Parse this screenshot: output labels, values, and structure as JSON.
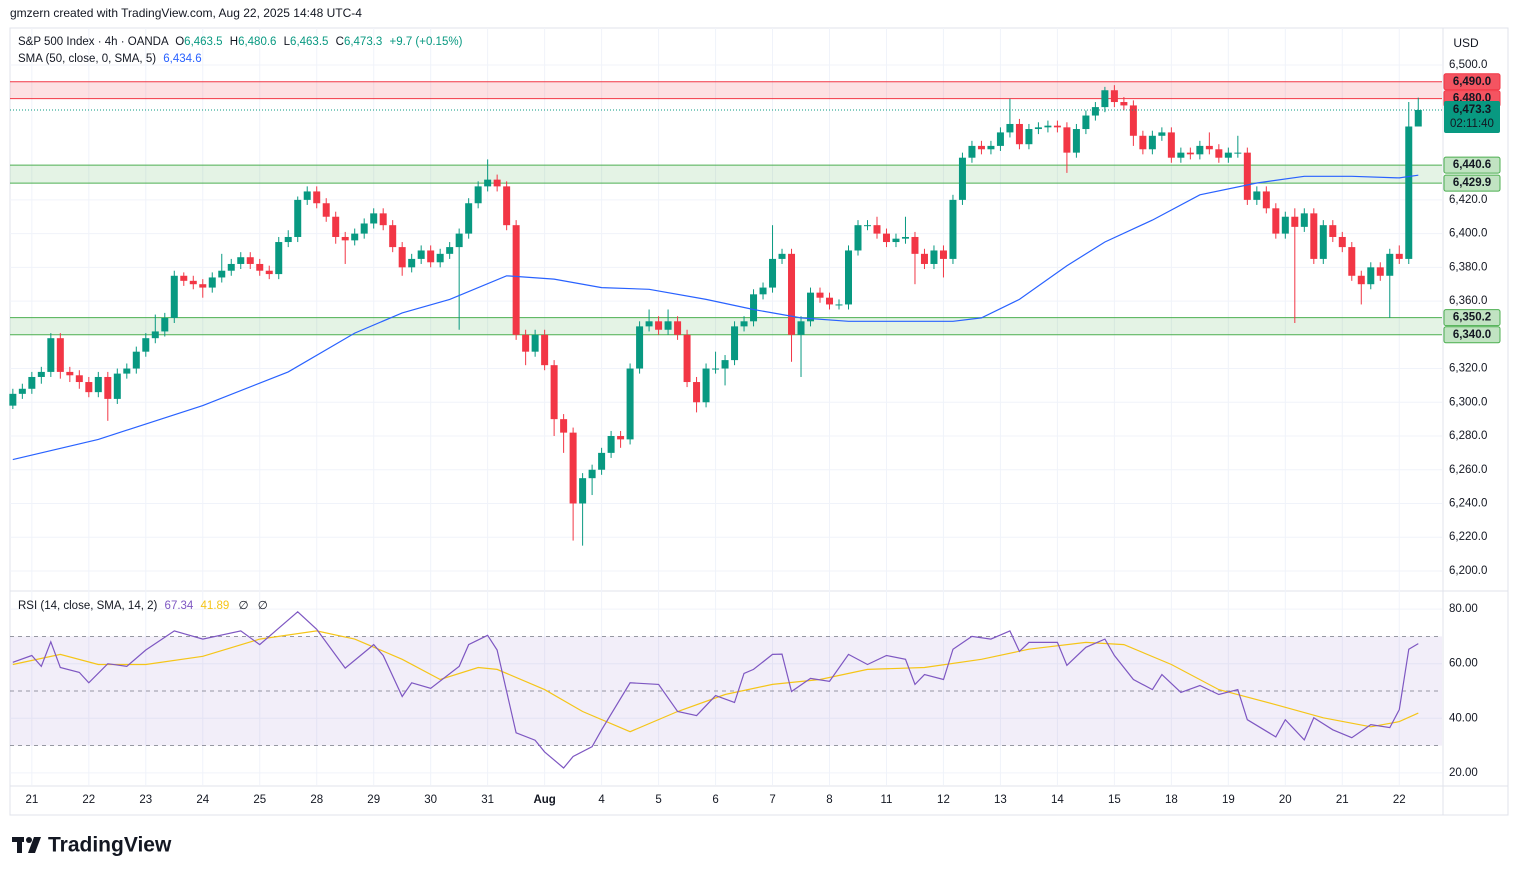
{
  "header": "gmzern created with TradingView.com, Aug 22, 2025 14:48 UTC-4",
  "footer": "TradingView",
  "chart_data": {
    "type": "candlestick",
    "currency": "USD",
    "legend": {
      "symbol": "S&P 500 Index · 4h · OANDA",
      "open_label": "O",
      "open": "6,463.5",
      "high_label": "H",
      "high": "6,480.6",
      "low_label": "L",
      "low": "6,463.5",
      "close_label": "C",
      "close": "6,473.3",
      "change": "+9.7 (+0.15%)"
    },
    "up_color": "#089981",
    "down_color": "#f23645",
    "categories": [
      null,
      null,
      "21",
      null,
      null,
      null,
      null,
      null,
      "22",
      null,
      null,
      null,
      null,
      null,
      "23",
      null,
      null,
      null,
      null,
      null,
      "24",
      null,
      null,
      null,
      null,
      null,
      "25",
      null,
      null,
      null,
      null,
      null,
      "28",
      null,
      null,
      null,
      null,
      null,
      "29",
      null,
      null,
      null,
      null,
      null,
      "30",
      null,
      null,
      null,
      null,
      null,
      "31",
      null,
      null,
      null,
      null,
      null,
      "Aug",
      null,
      null,
      null,
      null,
      null,
      "4",
      null,
      null,
      null,
      null,
      null,
      "5",
      null,
      null,
      null,
      null,
      null,
      "6",
      null,
      null,
      null,
      null,
      null,
      "7",
      null,
      null,
      null,
      null,
      null,
      "8",
      null,
      null,
      null,
      null,
      null,
      "11",
      null,
      null,
      null,
      null,
      null,
      "12",
      null,
      null,
      null,
      null,
      null,
      "13",
      null,
      null,
      null,
      null,
      null,
      "14",
      null,
      null,
      null,
      null,
      null,
      "15",
      null,
      null,
      null,
      null,
      null,
      "18",
      null,
      null,
      null,
      null,
      null,
      "19",
      null,
      null,
      null,
      null,
      null,
      "20",
      null,
      null,
      null,
      null,
      null,
      "21",
      null,
      null,
      null,
      null,
      null,
      "22",
      null,
      null
    ],
    "ohlc": [
      [
        6298,
        6308,
        6296,
        6305
      ],
      [
        6305,
        6311,
        6302,
        6308
      ],
      [
        6308,
        6318,
        6305,
        6315
      ],
      [
        6315,
        6321,
        6311,
        6318
      ],
      [
        6318,
        6341,
        6315,
        6338
      ],
      [
        6338,
        6341,
        6314,
        6318
      ],
      [
        6318,
        6321,
        6312,
        6316
      ],
      [
        6316,
        6319,
        6308,
        6312
      ],
      [
        6312,
        6315,
        6303,
        6306
      ],
      [
        6306,
        6318,
        6303,
        6315
      ],
      [
        6315,
        6318,
        6289,
        6302
      ],
      [
        6302,
        6320,
        6299,
        6317
      ],
      [
        6317,
        6323,
        6314,
        6320
      ],
      [
        6320,
        6333,
        6317,
        6330
      ],
      [
        6330,
        6341,
        6327,
        6338
      ],
      [
        6338,
        6352,
        6335,
        6342
      ],
      [
        6342,
        6353,
        6339,
        6350
      ],
      [
        6350,
        6378,
        6347,
        6375
      ],
      [
        6375,
        6377,
        6369,
        6372
      ],
      [
        6372,
        6375,
        6367,
        6370
      ],
      [
        6370,
        6373,
        6362,
        6368
      ],
      [
        6368,
        6377,
        6365,
        6374
      ],
      [
        6374,
        6388,
        6371,
        6378
      ],
      [
        6378,
        6385,
        6375,
        6382
      ],
      [
        6382,
        6389,
        6379,
        6386
      ],
      [
        6386,
        6389,
        6379,
        6382
      ],
      [
        6382,
        6385,
        6375,
        6378
      ],
      [
        6378,
        6381,
        6373,
        6376
      ],
      [
        6376,
        6398,
        6373,
        6395
      ],
      [
        6395,
        6402,
        6392,
        6398
      ],
      [
        6398,
        6422,
        6395,
        6420
      ],
      [
        6420,
        6428,
        6417,
        6425
      ],
      [
        6425,
        6428,
        6415,
        6418
      ],
      [
        6418,
        6421,
        6407,
        6410
      ],
      [
        6410,
        6413,
        6394,
        6398
      ],
      [
        6398,
        6401,
        6382,
        6396
      ],
      [
        6396,
        6403,
        6393,
        6400
      ],
      [
        6400,
        6409,
        6397,
        6406
      ],
      [
        6406,
        6415,
        6403,
        6412
      ],
      [
        6412,
        6415,
        6402,
        6405
      ],
      [
        6405,
        6408,
        6389,
        6392
      ],
      [
        6392,
        6395,
        6375,
        6380
      ],
      [
        6380,
        6388,
        6377,
        6385
      ],
      [
        6385,
        6393,
        6382,
        6390
      ],
      [
        6390,
        6393,
        6380,
        6383
      ],
      [
        6383,
        6391,
        6380,
        6388
      ],
      [
        6388,
        6395,
        6385,
        6392
      ],
      [
        6392,
        6403,
        6343,
        6400
      ],
      [
        6400,
        6421,
        6397,
        6418
      ],
      [
        6418,
        6431,
        6415,
        6428
      ],
      [
        6428,
        6444,
        6425,
        6432
      ],
      [
        6432,
        6435,
        6425,
        6428
      ],
      [
        6428,
        6431,
        6402,
        6405
      ],
      [
        6405,
        6408,
        6337,
        6340
      ],
      [
        6340,
        6343,
        6322,
        6330
      ],
      [
        6330,
        6343,
        6327,
        6340
      ],
      [
        6340,
        6343,
        6319,
        6322
      ],
      [
        6322,
        6325,
        6280,
        6290
      ],
      [
        6290,
        6293,
        6270,
        6282
      ],
      [
        6282,
        6285,
        6218,
        6240
      ],
      [
        6240,
        6258,
        6215,
        6255
      ],
      [
        6255,
        6263,
        6245,
        6260
      ],
      [
        6260,
        6273,
        6257,
        6270
      ],
      [
        6270,
        6283,
        6267,
        6280
      ],
      [
        6280,
        6283,
        6273,
        6278
      ],
      [
        6278,
        6323,
        6275,
        6320
      ],
      [
        6320,
        6348,
        6317,
        6345
      ],
      [
        6345,
        6355,
        6342,
        6348
      ],
      [
        6348,
        6351,
        6340,
        6343
      ],
      [
        6343,
        6355,
        6340,
        6348
      ],
      [
        6348,
        6351,
        6337,
        6340
      ],
      [
        6340,
        6343,
        6309,
        6312
      ],
      [
        6312,
        6315,
        6294,
        6300
      ],
      [
        6300,
        6323,
        6297,
        6320
      ],
      [
        6320,
        6330,
        6317,
        6320
      ],
      [
        6320,
        6328,
        6310,
        6325
      ],
      [
        6325,
        6348,
        6322,
        6345
      ],
      [
        6345,
        6351,
        6342,
        6348
      ],
      [
        6348,
        6367,
        6345,
        6364
      ],
      [
        6364,
        6371,
        6361,
        6368
      ],
      [
        6368,
        6405,
        6365,
        6385
      ],
      [
        6385,
        6391,
        6382,
        6388
      ],
      [
        6388,
        6391,
        6324,
        6340
      ],
      [
        6340,
        6351,
        6315,
        6348
      ],
      [
        6348,
        6368,
        6345,
        6365
      ],
      [
        6365,
        6368,
        6359,
        6362
      ],
      [
        6362,
        6365,
        6355,
        6358
      ],
      [
        6358,
        6361,
        6355,
        6358
      ],
      [
        6358,
        6393,
        6355,
        6390
      ],
      [
        6390,
        6408,
        6387,
        6405
      ],
      [
        6405,
        6408,
        6402,
        6405
      ],
      [
        6405,
        6410,
        6397,
        6400
      ],
      [
        6400,
        6403,
        6392,
        6395
      ],
      [
        6395,
        6400,
        6392,
        6397
      ],
      [
        6397,
        6410,
        6394,
        6398
      ],
      [
        6398,
        6401,
        6370,
        6388
      ],
      [
        6388,
        6391,
        6379,
        6382
      ],
      [
        6382,
        6393,
        6379,
        6390
      ],
      [
        6390,
        6393,
        6374,
        6385
      ],
      [
        6385,
        6423,
        6382,
        6420
      ],
      [
        6420,
        6448,
        6417,
        6445
      ],
      [
        6445,
        6455,
        6442,
        6452
      ],
      [
        6452,
        6455,
        6447,
        6450
      ],
      [
        6450,
        6455,
        6447,
        6452
      ],
      [
        6452,
        6463,
        6449,
        6460
      ],
      [
        6460,
        6480,
        6457,
        6465
      ],
      [
        6465,
        6468,
        6450,
        6453
      ],
      [
        6453,
        6465,
        6450,
        6462
      ],
      [
        6462,
        6466,
        6459,
        6463
      ],
      [
        6463,
        6467,
        6460,
        6464
      ],
      [
        6464,
        6467,
        6460,
        6463
      ],
      [
        6463,
        6466,
        6436,
        6448
      ],
      [
        6448,
        6465,
        6445,
        6462
      ],
      [
        6462,
        6473,
        6459,
        6470
      ],
      [
        6470,
        6478,
        6467,
        6475
      ],
      [
        6475,
        6487,
        6472,
        6485
      ],
      [
        6485,
        6488,
        6475,
        6478
      ],
      [
        6478,
        6481,
        6473,
        6476
      ],
      [
        6476,
        6479,
        6452,
        6458
      ],
      [
        6458,
        6461,
        6447,
        6450
      ],
      [
        6450,
        6461,
        6447,
        6458
      ],
      [
        6458,
        6463,
        6455,
        6460
      ],
      [
        6460,
        6463,
        6442,
        6445
      ],
      [
        6445,
        6451,
        6442,
        6448
      ],
      [
        6448,
        6451,
        6444,
        6447
      ],
      [
        6447,
        6455,
        6444,
        6452
      ],
      [
        6452,
        6460,
        6447,
        6450
      ],
      [
        6450,
        6453,
        6442,
        6445
      ],
      [
        6445,
        6451,
        6442,
        6448
      ],
      [
        6448,
        6458,
        6445,
        6448
      ],
      [
        6448,
        6451,
        6417,
        6420
      ],
      [
        6420,
        6428,
        6417,
        6425
      ],
      [
        6425,
        6428,
        6412,
        6415
      ],
      [
        6415,
        6418,
        6397,
        6400
      ],
      [
        6400,
        6413,
        6397,
        6410
      ],
      [
        6410,
        6415,
        6347,
        6404
      ],
      [
        6404,
        6415,
        6401,
        6412
      ],
      [
        6412,
        6415,
        6382,
        6385
      ],
      [
        6385,
        6408,
        6382,
        6405
      ],
      [
        6405,
        6408,
        6395,
        6398
      ],
      [
        6398,
        6401,
        6389,
        6392
      ],
      [
        6392,
        6395,
        6372,
        6375
      ],
      [
        6375,
        6378,
        6358,
        6370
      ],
      [
        6370,
        6383,
        6367,
        6380
      ],
      [
        6380,
        6383,
        6372,
        6375
      ],
      [
        6375,
        6391,
        6350,
        6388
      ],
      [
        6388,
        6393,
        6382,
        6385
      ],
      [
        6385,
        6478,
        6382,
        6463.5
      ],
      [
        6463.5,
        6480.6,
        6463.5,
        6473.3
      ]
    ],
    "xlim": [
      -0.3,
      150.5
    ],
    "ylim": [
      6188.7,
      6521.9
    ],
    "yticks": [
      {
        "value": 6500,
        "label": "6,500.0"
      },
      {
        "value": 6420,
        "label": "6,420.0"
      },
      {
        "value": 6400,
        "label": "6,400.0"
      },
      {
        "value": 6380,
        "label": "6,380.0"
      },
      {
        "value": 6360,
        "label": "6,360.0"
      },
      {
        "value": 6320,
        "label": "6,320.0"
      },
      {
        "value": 6300,
        "label": "6,300.0"
      },
      {
        "value": 6280,
        "label": "6,280.0"
      },
      {
        "value": 6260,
        "label": "6,260.0"
      },
      {
        "value": 6240,
        "label": "6,240.0"
      },
      {
        "value": 6220,
        "label": "6,220.0"
      },
      {
        "value": 6200,
        "label": "6,200.0"
      }
    ],
    "zones": [
      {
        "high": {
          "value": 6490,
          "label": "6,490.0"
        },
        "low": {
          "value": 6480,
          "label": "6,480.0"
        },
        "color": "#f23645",
        "label_text_color": "#ffffff"
      },
      {
        "high": {
          "value": 6440.6,
          "label": "6,440.6"
        },
        "low": {
          "value": 6429.9,
          "label": "6,429.9"
        },
        "color": "#4caf50",
        "label_text_color": "#131722"
      },
      {
        "high": {
          "value": 6350.2,
          "label": "6,350.2"
        },
        "low": {
          "value": 6340,
          "label": "6,340.0"
        },
        "color": "#4caf50",
        "label_text_color": "#131722"
      }
    ],
    "last_price": {
      "value": 6473.3,
      "label": "6,473.3",
      "countdown": "02:11:40"
    },
    "sma": {
      "name": "SMA (50, close, 0, SMA, 5)",
      "value_label": "6,434.6",
      "color": "#2962ff",
      "x": [
        0,
        9,
        20,
        29,
        36,
        41,
        46,
        52,
        57,
        62,
        67,
        73,
        78,
        83,
        88,
        99,
        102,
        106,
        111,
        115,
        120,
        125,
        131,
        136,
        141,
        146,
        148
      ],
      "values": [
        6266,
        6278,
        6298,
        6318,
        6341,
        6353,
        6361,
        6375,
        6373,
        6368,
        6367,
        6361,
        6355,
        6350,
        6348,
        6348,
        6350,
        6361,
        6381,
        6395,
        6408,
        6423,
        6430,
        6434,
        6434,
        6433,
        6434.6
      ]
    },
    "rsi": {
      "name": "RSI (14, close, SMA, 14, 2)",
      "value_label": "67.34",
      "sma_value_label": "41.89",
      "extra_labels": [
        "∅",
        "∅"
      ],
      "color": "#7e57c2",
      "sma_color": "#f5c518",
      "ylim": [
        15.58,
        86.25
      ],
      "yticks": [
        {
          "value": 80,
          "label": "80.00"
        },
        {
          "value": 60,
          "label": "60.00"
        },
        {
          "value": 40,
          "label": "40.00"
        },
        {
          "value": 20,
          "label": "20.00"
        }
      ],
      "levels": [
        70,
        50,
        30
      ],
      "x": [
        0,
        2,
        3,
        4,
        5,
        7,
        8,
        10,
        12,
        14,
        17,
        20,
        24,
        26,
        28,
        30,
        32,
        35,
        38,
        39,
        41,
        42,
        44,
        47,
        48,
        50,
        51,
        53,
        55,
        56,
        58,
        59,
        61,
        62,
        65,
        68,
        70,
        72,
        74,
        76,
        77,
        78,
        80,
        81,
        82,
        84,
        86,
        88,
        90,
        92,
        94,
        95,
        96,
        98,
        99,
        101,
        103,
        105,
        106,
        107,
        110,
        111,
        113,
        115,
        116,
        118,
        120,
        121,
        123,
        125,
        127,
        129,
        130,
        133,
        134,
        136,
        137,
        139,
        141,
        143,
        145,
        146,
        147,
        148
      ],
      "values": [
        60.5,
        63,
        59,
        68,
        58.6,
        56.8,
        53,
        60,
        59,
        65,
        72,
        69,
        72,
        67,
        73,
        79,
        72.6,
        58.4,
        67,
        63,
        48,
        53,
        51,
        59,
        67,
        70.4,
        65,
        34.7,
        32,
        27.7,
        21.8,
        26,
        29.6,
        35.8,
        53,
        52.4,
        42.5,
        41,
        48.3,
        45.8,
        56.4,
        57.9,
        63.4,
        63.5,
        49.8,
        54.6,
        53.5,
        63.4,
        59.7,
        63,
        61.6,
        52.4,
        56,
        54.2,
        65.3,
        70,
        69,
        72,
        64.5,
        67.8,
        67.8,
        59.4,
        66,
        69,
        63,
        54.2,
        50.5,
        56,
        49.5,
        52,
        48.7,
        50.5,
        39.5,
        33.2,
        39.5,
        32.1,
        40.2,
        35.8,
        32.9,
        37.7,
        36.6,
        43.2,
        65.3,
        67.34
      ],
      "sma_x": [
        0,
        5,
        9,
        14,
        20,
        26,
        32,
        36,
        41,
        45,
        49,
        51,
        56,
        60,
        65,
        70,
        75,
        80,
        85,
        90,
        96,
        102,
        107,
        113,
        117,
        122,
        127,
        133,
        138,
        143,
        146,
        148
      ],
      "sma_values": [
        59.7,
        63.4,
        59.7,
        59.7,
        62.7,
        69,
        72,
        69,
        61.6,
        54.2,
        58.6,
        57.9,
        50.5,
        42.5,
        35.1,
        42.5,
        48.7,
        52.4,
        54.2,
        57.9,
        58.6,
        61.6,
        65.3,
        67.8,
        67,
        59.7,
        50.5,
        45,
        40.2,
        36.9,
        38.8,
        41.89
      ]
    }
  }
}
